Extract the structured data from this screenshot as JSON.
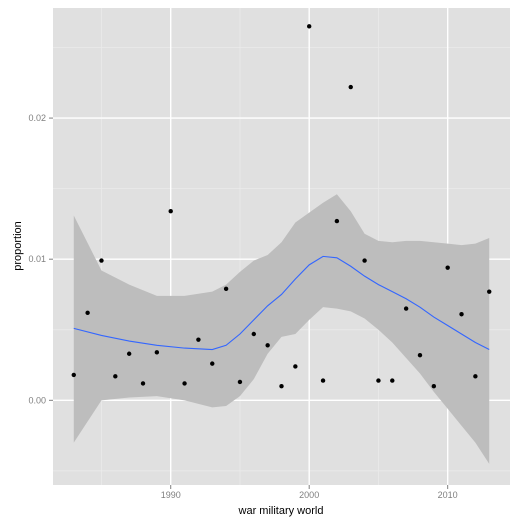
{
  "chart_data": {
    "type": "scatter",
    "xlabel": "war military world",
    "ylabel": "proportion",
    "xlim": [
      1981.5,
      2014.5
    ],
    "ylim": [
      -0.006,
      0.0278
    ],
    "x_ticks": [
      1990,
      2000,
      2010
    ],
    "y_ticks": [
      0.0,
      0.01,
      0.02
    ],
    "x_tick_labels": [
      "1990",
      "2000",
      "2010"
    ],
    "y_tick_labels": [
      "0.00",
      "0.01",
      "0.02"
    ],
    "grid": true,
    "colors": {
      "panel_background": "#e0e0e0",
      "grid_major": "#ffffff",
      "grid_minor": "#ebebeb",
      "points": "#000000",
      "smooth_line": "#3366ff",
      "confidence_band": "#bdbdbd"
    },
    "series": [
      {
        "kind": "points",
        "x": [
          1983,
          1984,
          1985,
          1986,
          1987,
          1988,
          1989,
          1990,
          1991,
          1992,
          1993,
          1994,
          1995,
          1996,
          1997,
          1998,
          1999,
          2000,
          2001,
          2002,
          2003,
          2004,
          2005,
          2006,
          2007,
          2008,
          2009,
          2010,
          2011,
          2012,
          2013
        ],
        "y": [
          0.0018,
          0.0062,
          0.0099,
          0.0017,
          0.0033,
          0.0012,
          0.0034,
          0.0134,
          0.0012,
          0.0043,
          0.0026,
          0.0079,
          0.0013,
          0.0047,
          0.0039,
          0.001,
          0.0024,
          0.0265,
          0.0014,
          0.0127,
          0.0222,
          0.0099,
          0.0014,
          0.0014,
          0.0065,
          0.0032,
          0.001,
          0.0094,
          0.0061,
          0.0017,
          0.0077
        ]
      },
      {
        "kind": "smooth",
        "x": [
          1983,
          1985,
          1987,
          1989,
          1991,
          1993,
          1994,
          1995,
          1996,
          1997,
          1998,
          1999,
          2000,
          2001,
          2002,
          2003,
          2004,
          2005,
          2006,
          2007,
          2008,
          2009,
          2010,
          2011,
          2012,
          2013
        ],
        "y": [
          0.0051,
          0.0046,
          0.0042,
          0.0039,
          0.0037,
          0.0036,
          0.0039,
          0.0047,
          0.0057,
          0.0067,
          0.0075,
          0.0086,
          0.0096,
          0.0102,
          0.0101,
          0.0095,
          0.0088,
          0.0082,
          0.0077,
          0.0072,
          0.0066,
          0.0059,
          0.0053,
          0.0047,
          0.0041,
          0.0036
        ],
        "lower": [
          -0.003,
          0.0,
          0.0002,
          0.0003,
          0.0,
          -0.0005,
          -0.0004,
          0.0003,
          0.0015,
          0.0033,
          0.0045,
          0.0047,
          0.0057,
          0.0066,
          0.0065,
          0.0063,
          0.0058,
          0.005,
          0.0041,
          0.003,
          0.0019,
          0.0006,
          -0.0006,
          -0.0018,
          -0.003,
          -0.0045
        ],
        "upper": [
          0.0131,
          0.0092,
          0.0082,
          0.0074,
          0.0074,
          0.0077,
          0.0082,
          0.0091,
          0.0099,
          0.0103,
          0.0112,
          0.0126,
          0.0133,
          0.014,
          0.0146,
          0.0134,
          0.0118,
          0.0113,
          0.0112,
          0.0113,
          0.0113,
          0.0112,
          0.0111,
          0.011,
          0.0111,
          0.0115
        ]
      }
    ]
  }
}
